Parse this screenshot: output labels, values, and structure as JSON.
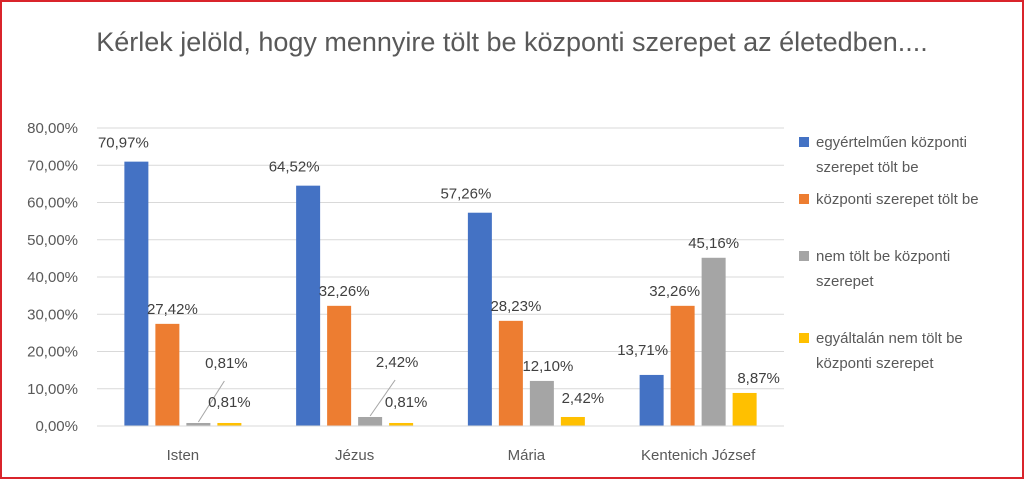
{
  "chart_data": {
    "type": "bar",
    "title": "Kérlek jelöld, hogy mennyire tölt be központi szerepet az életedben....",
    "categories": [
      "Isten",
      "Jézus",
      "Mária",
      "Kentenich József"
    ],
    "series": [
      {
        "name": "egyértelműen központi szerepet tölt be",
        "color": "#4472c4",
        "values": [
          70.97,
          64.52,
          57.26,
          13.71
        ],
        "labels": [
          "70,97%",
          "64,52%",
          "57,26%",
          "13,71%"
        ]
      },
      {
        "name": "központi szerepet tölt be",
        "color": "#ed7d31",
        "values": [
          27.42,
          32.26,
          28.23,
          32.26
        ],
        "labels": [
          "27,42%",
          "32,26%",
          "28,23%",
          "32,26%"
        ]
      },
      {
        "name": "nem tölt be központi szerepet",
        "color": "#a5a5a5",
        "values": [
          0.81,
          2.42,
          12.1,
          45.16
        ],
        "labels": [
          "0,81%",
          "2,42%",
          "12,10%",
          "45,16%"
        ]
      },
      {
        "name": "egyáltalán nem tölt be központi szerepet",
        "color": "#ffc000",
        "values": [
          0.81,
          0.81,
          2.42,
          8.87
        ],
        "labels": [
          "0,81%",
          "0,81%",
          "2,42%",
          "8,87%"
        ]
      }
    ],
    "ylim": [
      0,
      80
    ],
    "yticks": [
      "0,00%",
      "10,00%",
      "20,00%",
      "30,00%",
      "40,00%",
      "50,00%",
      "60,00%",
      "70,00%",
      "80,00%"
    ],
    "grid": true,
    "legend": "right",
    "xlabel": "",
    "ylabel": ""
  }
}
